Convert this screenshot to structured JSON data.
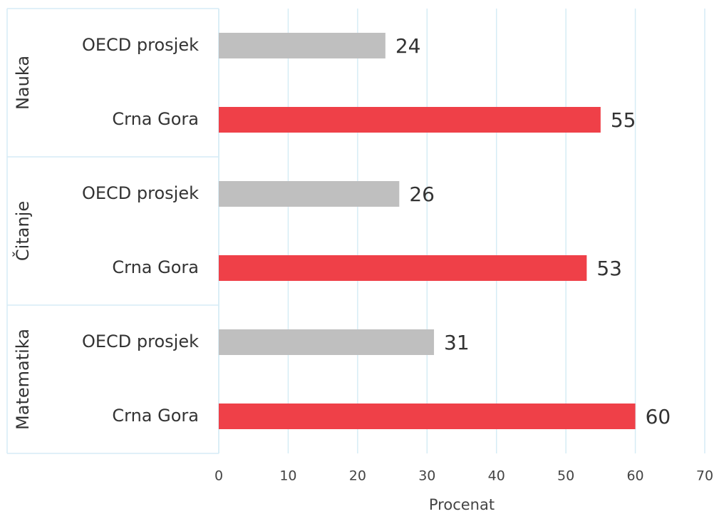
{
  "chart_data": {
    "type": "bar",
    "orientation": "horizontal",
    "groups": [
      "Nauka",
      "Čitanje",
      "Matematika"
    ],
    "series": [
      {
        "name": "OECD prosjek",
        "color": "#bfbfbf",
        "values": [
          24,
          26,
          31
        ]
      },
      {
        "name": "Crna Gora",
        "color": "#ef4048",
        "values": [
          55,
          53,
          60
        ]
      }
    ],
    "xlabel": "Procenat",
    "xlim": [
      0,
      70
    ],
    "xticks": [
      0,
      10,
      20,
      30,
      40,
      50,
      60,
      70
    ],
    "grid": true
  }
}
